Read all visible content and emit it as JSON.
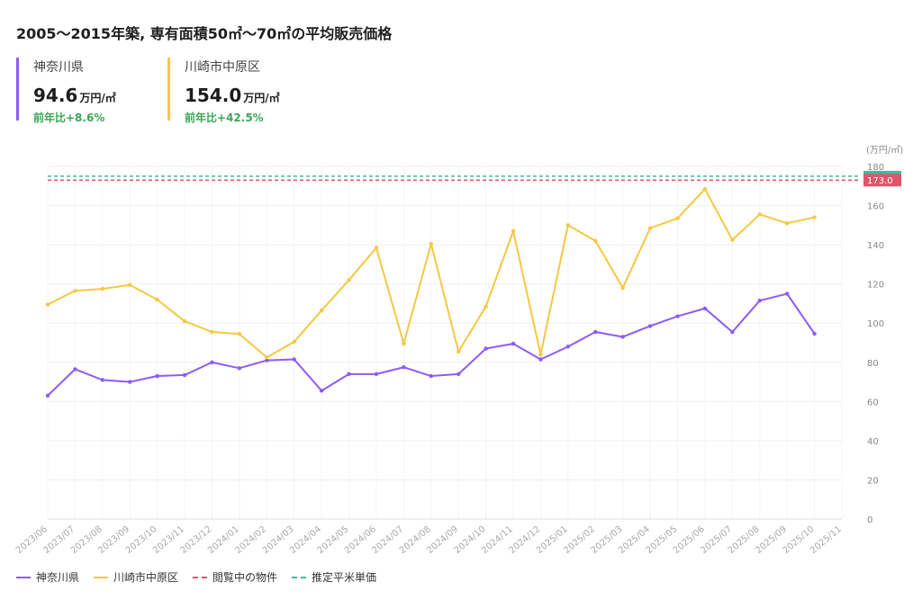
{
  "title": "2005〜2015年築, 専有面積50㎡〜70㎡の平均販売価格",
  "stats": [
    {
      "name": "神奈川県",
      "value": "94.6",
      "unit": "万円/㎡",
      "yoy": "前年比+8.6%",
      "color": "#8b5cf6"
    },
    {
      "name": "川崎市中原区",
      "value": "154.0",
      "unit": "万円/㎡",
      "yoy": "前年比+42.5%",
      "color": "#f5c842"
    }
  ],
  "chart_data": {
    "type": "line",
    "y_unit_label": "(万円/㎡)",
    "categories": [
      "2023/06",
      "2023/07",
      "2023/08",
      "2023/09",
      "2023/10",
      "2023/11",
      "2023/12",
      "2024/01",
      "2024/02",
      "2024/03",
      "2024/04",
      "2024/05",
      "2024/06",
      "2024/07",
      "2024/08",
      "2024/09",
      "2024/10",
      "2024/11",
      "2024/12",
      "2025/01",
      "2025/02",
      "2025/03",
      "2025/04",
      "2025/05",
      "2025/06",
      "2025/07",
      "2025/08",
      "2025/09",
      "2025/10",
      "2025/11"
    ],
    "ylim": [
      0,
      180
    ],
    "yticks": [
      0,
      20,
      40,
      60,
      80,
      100,
      120,
      140,
      160,
      180
    ],
    "y_axis_position": "right",
    "grid": true,
    "series": [
      {
        "name": "神奈川県",
        "color": "#8b5cf6",
        "values": [
          63,
          76.5,
          71,
          70,
          73,
          73.5,
          80,
          77,
          81,
          81.5,
          65.5,
          74,
          74,
          77.5,
          73,
          74,
          87,
          89.5,
          81.5,
          88,
          95.5,
          93,
          98.5,
          103.5,
          107.5,
          95.5,
          111.5,
          115,
          94.6,
          null
        ]
      },
      {
        "name": "川崎市中原区",
        "color": "#f5c842",
        "values": [
          109.5,
          116.5,
          117.5,
          119.5,
          112,
          101,
          95.5,
          94.5,
          82.5,
          90.5,
          106.5,
          122,
          138.5,
          89.5,
          140.5,
          85.5,
          108.5,
          147,
          84,
          150,
          142,
          118,
          148.5,
          153.5,
          168.5,
          142.5,
          155.5,
          151,
          154.0,
          null
        ]
      }
    ],
    "reference_lines": [
      {
        "name": "閲覧中の物件",
        "color": "#e0556b",
        "value": 173.0,
        "label": "173.0"
      },
      {
        "name": "推定平米単価",
        "color": "#4bb5a0",
        "value": 175,
        "label": ""
      }
    ],
    "legend": [
      "神奈川県",
      "川崎市中原区",
      "閲覧中の物件",
      "推定平米単価"
    ],
    "legend_position": "bottom-left"
  }
}
